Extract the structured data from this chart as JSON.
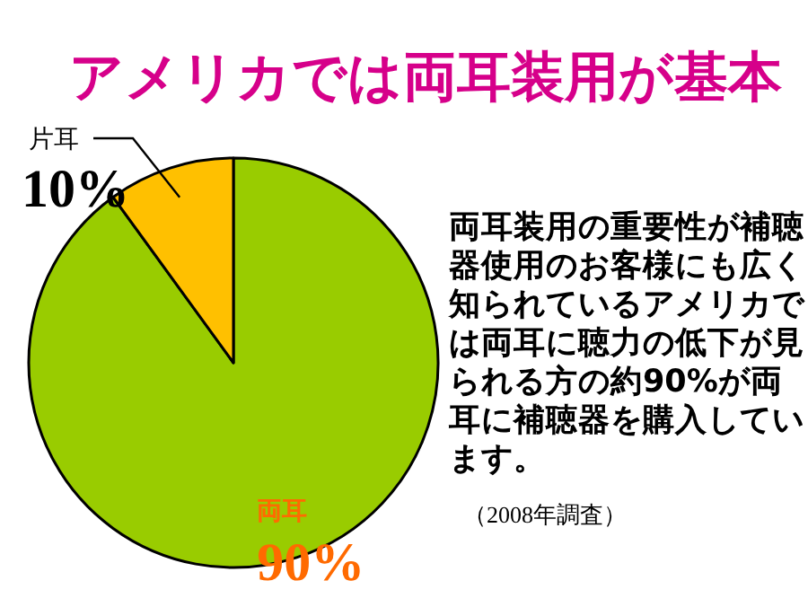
{
  "chart_data": {
    "type": "pie",
    "title": "アメリカでは両耳装用が基本",
    "categories": [
      "両耳",
      "片耳"
    ],
    "values": [
      90,
      10
    ],
    "colors": [
      "#99cc00",
      "#ffc000"
    ],
    "value_labels": [
      "90%",
      "10%"
    ],
    "annotations": [
      "両耳装用の重要性が補聴器使用のお客様にも広く知られているアメリカでは両耳に聴力の低下が見られる方の約90%が両耳に補聴器を購入しています。",
      "（2008年調査）"
    ]
  }
}
